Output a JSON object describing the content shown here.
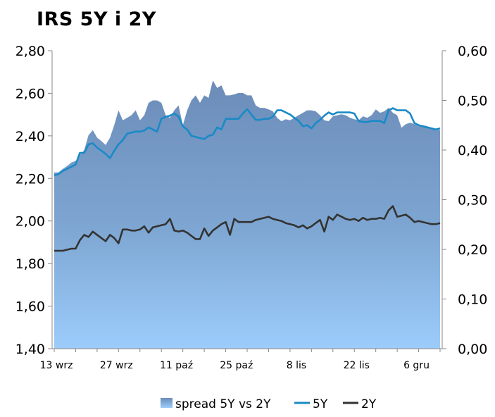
{
  "chart_data": {
    "type": "line",
    "title": "IRS 5Y i 2Y",
    "x_tick_labels": [
      "13 wrz",
      "27 wrz",
      "11 paź",
      "25 paź",
      "8 lis",
      "22 lis",
      "6 gru"
    ],
    "left_axis": {
      "ylim": [
        1.4,
        2.8
      ],
      "ticks": [
        "1,40",
        "1,60",
        "1,80",
        "2,00",
        "2,20",
        "2,40",
        "2,60",
        "2,80"
      ]
    },
    "right_axis": {
      "ylim": [
        0.0,
        0.6
      ],
      "ticks": [
        "0,00",
        "0,10",
        "0,20",
        "0,30",
        "0,40",
        "0,50",
        "0,60"
      ]
    },
    "legend_position": "bottom",
    "grid": false,
    "x_index": [
      0,
      1,
      2,
      3,
      4,
      5,
      6,
      7,
      8,
      9,
      10,
      11,
      12,
      13,
      14,
      15,
      16,
      17,
      18,
      19,
      20,
      21,
      22,
      23,
      24,
      25,
      26,
      27,
      28,
      29,
      30,
      31,
      32,
      33,
      34,
      35,
      36,
      37,
      38,
      39,
      40,
      41,
      42,
      43,
      44,
      45,
      46,
      47,
      48,
      49,
      50,
      51,
      52,
      53,
      54,
      55,
      56,
      57,
      58,
      59,
      60,
      61,
      62,
      63,
      64,
      65,
      66,
      67,
      68,
      69,
      70,
      71,
      72,
      73,
      74,
      75,
      76,
      77,
      78,
      79,
      80,
      81,
      82,
      83,
      84,
      85,
      86,
      87,
      88,
      89,
      90
    ],
    "series": [
      {
        "name": "spread 5Y vs 2Y",
        "axis": "right",
        "kind": "area",
        "color": "#7a9cc4",
        "values": [
          0.355,
          0.355,
          0.362,
          0.368,
          0.375,
          0.378,
          0.39,
          0.4,
          0.43,
          0.44,
          0.425,
          0.418,
          0.41,
          0.425,
          0.45,
          0.48,
          0.46,
          0.465,
          0.47,
          0.48,
          0.46,
          0.47,
          0.495,
          0.5,
          0.5,
          0.495,
          0.47,
          0.465,
          0.48,
          0.49,
          0.45,
          0.48,
          0.5,
          0.51,
          0.495,
          0.51,
          0.505,
          0.54,
          0.525,
          0.53,
          0.51,
          0.51,
          0.512,
          0.515,
          0.515,
          0.51,
          0.51,
          0.49,
          0.485,
          0.485,
          0.482,
          0.478,
          0.465,
          0.458,
          0.462,
          0.46,
          0.465,
          0.47,
          0.475,
          0.48,
          0.48,
          0.478,
          0.47,
          0.46,
          0.458,
          0.468,
          0.47,
          0.472,
          0.47,
          0.465,
          0.462,
          0.46,
          0.468,
          0.465,
          0.47,
          0.482,
          0.475,
          0.478,
          0.485,
          0.475,
          0.47,
          0.445,
          0.452,
          0.455,
          0.452,
          0.448,
          0.45,
          0.448,
          0.445,
          0.442,
          0.44
        ]
      },
      {
        "name": "5Y",
        "axis": "left",
        "kind": "line",
        "color": "#1a8ac6",
        "values": [
          2.215,
          2.22,
          2.235,
          2.245,
          2.255,
          2.265,
          2.32,
          2.32,
          2.36,
          2.365,
          2.345,
          2.33,
          2.315,
          2.295,
          2.33,
          2.36,
          2.38,
          2.41,
          2.415,
          2.42,
          2.42,
          2.425,
          2.44,
          2.43,
          2.42,
          2.48,
          2.49,
          2.495,
          2.505,
          2.49,
          2.445,
          2.43,
          2.4,
          2.395,
          2.39,
          2.385,
          2.4,
          2.405,
          2.44,
          2.43,
          2.48,
          2.48,
          2.48,
          2.48,
          2.505,
          2.525,
          2.5,
          2.475,
          2.475,
          2.48,
          2.48,
          2.49,
          2.52,
          2.52,
          2.51,
          2.5,
          2.485,
          2.47,
          2.445,
          2.45,
          2.435,
          2.46,
          2.475,
          2.495,
          2.51,
          2.5,
          2.51,
          2.51,
          2.51,
          2.51,
          2.505,
          2.47,
          2.465,
          2.465,
          2.47,
          2.47,
          2.47,
          2.46,
          2.52,
          2.53,
          2.52,
          2.52,
          2.52,
          2.505,
          2.46,
          2.45,
          2.445,
          2.44,
          2.435,
          2.43,
          2.435
        ]
      },
      {
        "name": "2Y",
        "axis": "left",
        "kind": "line",
        "color": "#333333",
        "values": [
          1.86,
          1.86,
          1.86,
          1.865,
          1.87,
          1.87,
          1.91,
          1.935,
          1.925,
          1.95,
          1.935,
          1.92,
          1.905,
          1.935,
          1.92,
          1.895,
          1.96,
          1.96,
          1.955,
          1.955,
          1.96,
          1.975,
          1.945,
          1.97,
          1.975,
          1.98,
          1.985,
          2.01,
          1.955,
          1.95,
          1.955,
          1.945,
          1.93,
          1.915,
          1.915,
          1.965,
          1.93,
          1.955,
          1.97,
          1.985,
          1.995,
          1.935,
          2.01,
          1.995,
          1.995,
          1.995,
          1.995,
          2.005,
          2.01,
          2.015,
          2.02,
          2.01,
          2.005,
          2.0,
          1.99,
          1.985,
          1.98,
          1.97,
          1.98,
          1.965,
          1.975,
          1.99,
          2.005,
          1.95,
          2.02,
          2.005,
          2.03,
          2.02,
          2.01,
          2.005,
          2.01,
          2.0,
          2.015,
          2.005,
          2.01,
          2.01,
          2.015,
          2.01,
          2.05,
          2.07,
          2.02,
          2.025,
          2.03,
          2.015,
          1.995,
          2.0,
          1.995,
          1.99,
          1.985,
          1.985,
          1.99
        ]
      }
    ]
  }
}
